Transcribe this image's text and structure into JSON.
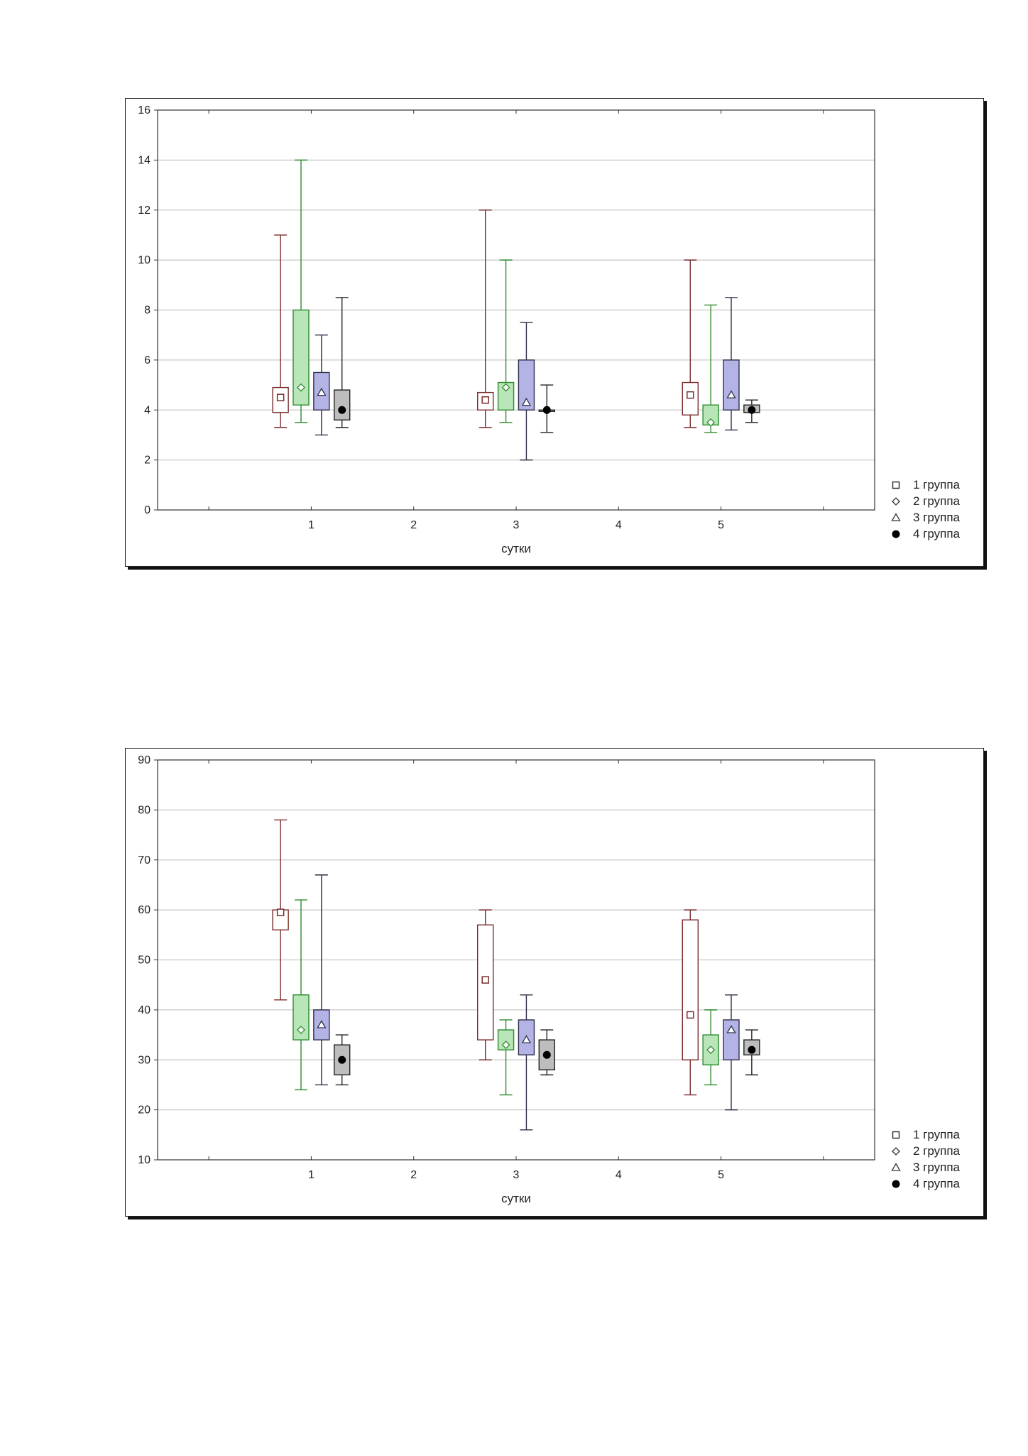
{
  "colors": {
    "group1_line": "#7a2b2b",
    "group1_fill": "#ffffff",
    "group2_line": "#2e8b2e",
    "group2_fill": "#b8e6b8",
    "group3_line": "#30304a",
    "group3_fill": "#b3b3e6",
    "group4_line": "#222222",
    "group4_fill": "#bdbdbd",
    "grid": "#c8c8c8"
  },
  "chart_data": [
    {
      "type": "box",
      "title": "",
      "xlabel": "сутки",
      "ylabel": "",
      "ylim": [
        0,
        16
      ],
      "yticks": [
        "0",
        "2",
        "4",
        "6",
        "8",
        "10",
        "12",
        "14",
        "16"
      ],
      "xlim": [
        -0.5,
        6.5
      ],
      "xticks": [
        "1",
        "2",
        "3",
        "4",
        "5"
      ],
      "grid": true,
      "legend_position": "bottom-right",
      "series": [
        {
          "name": "1 группа",
          "marker": "square",
          "boxes": [
            {
              "x": 1,
              "min": 3.3,
              "q1": 3.9,
              "median": 4.5,
              "q3": 4.9,
              "max": 11
            },
            {
              "x": 3,
              "min": 3.3,
              "q1": 4.0,
              "median": 4.4,
              "q3": 4.7,
              "max": 12
            },
            {
              "x": 5,
              "min": 3.3,
              "q1": 3.8,
              "median": 4.6,
              "q3": 5.1,
              "max": 10
            }
          ]
        },
        {
          "name": "2 группа",
          "marker": "diamond",
          "boxes": [
            {
              "x": 1,
              "min": 3.5,
              "q1": 4.2,
              "median": 4.9,
              "q3": 8.0,
              "max": 14
            },
            {
              "x": 3,
              "min": 3.5,
              "q1": 4.0,
              "median": 4.9,
              "q3": 5.1,
              "max": 10
            },
            {
              "x": 5,
              "min": 3.1,
              "q1": 3.4,
              "median": 3.5,
              "q3": 4.2,
              "max": 8.2
            }
          ]
        },
        {
          "name": "3 группа",
          "marker": "triangle",
          "boxes": [
            {
              "x": 1,
              "min": 3.0,
              "q1": 4.0,
              "median": 4.7,
              "q3": 5.5,
              "max": 7.0
            },
            {
              "x": 3,
              "min": 2.0,
              "q1": 4.0,
              "median": 4.3,
              "q3": 6.0,
              "max": 7.5
            },
            {
              "x": 5,
              "min": 3.2,
              "q1": 4.0,
              "median": 4.6,
              "q3": 6.0,
              "max": 8.5
            }
          ]
        },
        {
          "name": "4 группа",
          "marker": "circle",
          "boxes": [
            {
              "x": 1,
              "min": 3.3,
              "q1": 3.6,
              "median": 4.0,
              "q3": 4.8,
              "max": 8.5
            },
            {
              "x": 3,
              "min": 3.1,
              "q1": 4.0,
              "median": 4.0,
              "q3": 4.0,
              "max": 5.0
            },
            {
              "x": 5,
              "min": 3.5,
              "q1": 3.9,
              "median": 4.0,
              "q3": 4.2,
              "max": 4.4
            }
          ]
        }
      ]
    },
    {
      "type": "box",
      "title": "",
      "xlabel": "сутки",
      "ylabel": "",
      "ylim": [
        10,
        90
      ],
      "yticks": [
        "10",
        "20",
        "30",
        "40",
        "50",
        "60",
        "70",
        "80",
        "90"
      ],
      "xlim": [
        -0.5,
        6.5
      ],
      "xticks": [
        "1",
        "2",
        "3",
        "4",
        "5"
      ],
      "grid": true,
      "legend_position": "bottom-right",
      "series": [
        {
          "name": "1 группа",
          "marker": "square",
          "boxes": [
            {
              "x": 1,
              "min": 42,
              "q1": 56,
              "median": 59.5,
              "q3": 60,
              "max": 78
            },
            {
              "x": 3,
              "min": 30,
              "q1": 34,
              "median": 46,
              "q3": 57,
              "max": 60
            },
            {
              "x": 5,
              "min": 23,
              "q1": 30,
              "median": 39,
              "q3": 58,
              "max": 60
            }
          ]
        },
        {
          "name": "2 группа",
          "marker": "diamond",
          "boxes": [
            {
              "x": 1,
              "min": 24,
              "q1": 34,
              "median": 36,
              "q3": 43,
              "max": 62
            },
            {
              "x": 3,
              "min": 23,
              "q1": 32,
              "median": 33,
              "q3": 36,
              "max": 38
            },
            {
              "x": 5,
              "min": 25,
              "q1": 29,
              "median": 32,
              "q3": 35,
              "max": 40
            }
          ]
        },
        {
          "name": "3 группа",
          "marker": "triangle",
          "boxes": [
            {
              "x": 1,
              "min": 25,
              "q1": 34,
              "median": 37,
              "q3": 40,
              "max": 67
            },
            {
              "x": 3,
              "min": 16,
              "q1": 31,
              "median": 34,
              "q3": 38,
              "max": 43
            },
            {
              "x": 5,
              "min": 20,
              "q1": 30,
              "median": 36,
              "q3": 38,
              "max": 43
            }
          ]
        },
        {
          "name": "4 группа",
          "marker": "circle",
          "boxes": [
            {
              "x": 1,
              "min": 25,
              "q1": 27,
              "median": 30,
              "q3": 33,
              "max": 35
            },
            {
              "x": 3,
              "min": 27,
              "q1": 28,
              "median": 31,
              "q3": 34,
              "max": 36
            },
            {
              "x": 5,
              "min": 27,
              "q1": 31,
              "median": 32,
              "q3": 34,
              "max": 36
            }
          ]
        }
      ]
    }
  ]
}
